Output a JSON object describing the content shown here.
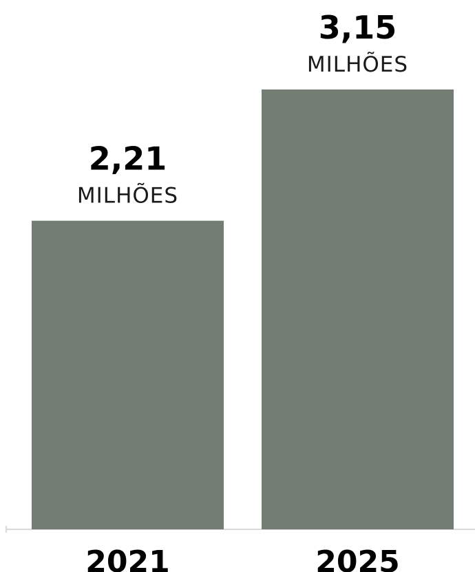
{
  "chart_data": {
    "type": "bar",
    "categories": [
      "2021",
      "2025"
    ],
    "values": [
      2.21,
      3.15
    ],
    "value_labels": [
      "2,21",
      "3,15"
    ],
    "value_units": [
      "MILHÕES",
      "MILHÕES"
    ],
    "title": "",
    "xlabel": "",
    "ylabel": "",
    "ylim": [
      0,
      3.5
    ],
    "grid": false,
    "legend": "none",
    "colors": {
      "bar": "#737d74",
      "axis": "#d9d9d9",
      "text": "#000000"
    }
  }
}
